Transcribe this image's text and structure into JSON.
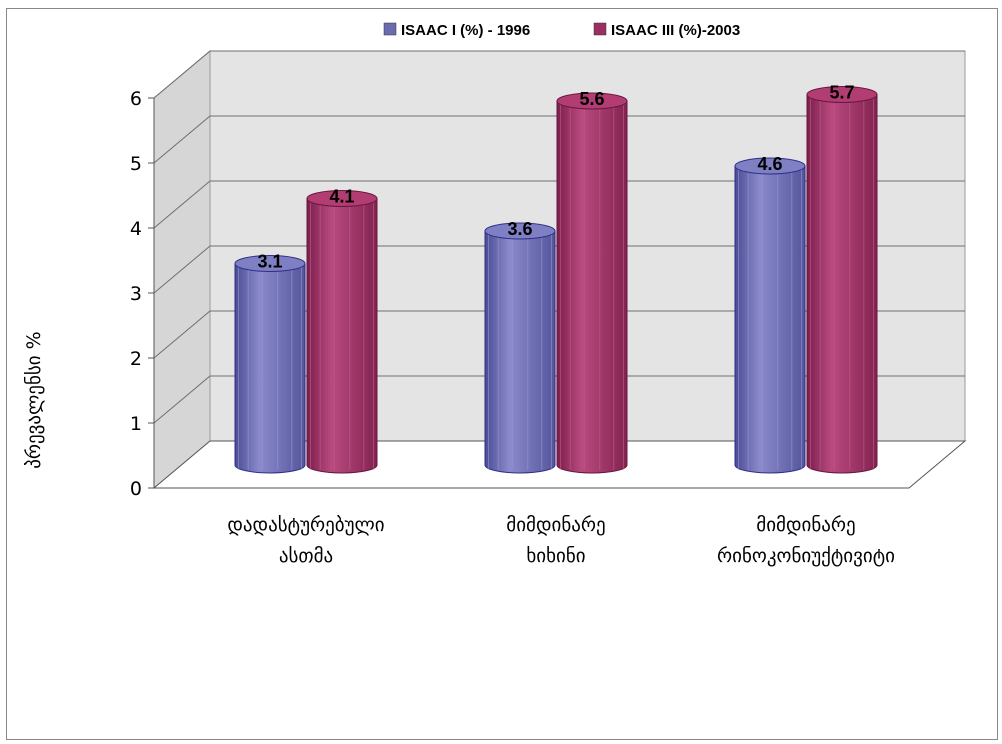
{
  "chart_data": {
    "type": "bar",
    "style": "3d-cylinder",
    "ylabel": "პრევალენსი    %",
    "ylim": [
      0,
      6
    ],
    "yticks": [
      0,
      1,
      2,
      3,
      4,
      5,
      6
    ],
    "categories": [
      [
        "დადასტურებული",
        "ასთმა"
      ],
      [
        "მიმდინარე",
        "ხიხინი"
      ],
      [
        "მიმდინარე",
        "რინოკონიუქტივიტი"
      ]
    ],
    "series": [
      {
        "name": "ISAAC I (%) - 1996",
        "values": [
          3.1,
          3.6,
          4.6
        ],
        "color": "#6b6baf"
      },
      {
        "name": "ISAAC III (%)-2003",
        "values": [
          4.1,
          5.6,
          5.7
        ],
        "color": "#9b2f63"
      }
    ],
    "legend_position": "top",
    "grid": true
  }
}
